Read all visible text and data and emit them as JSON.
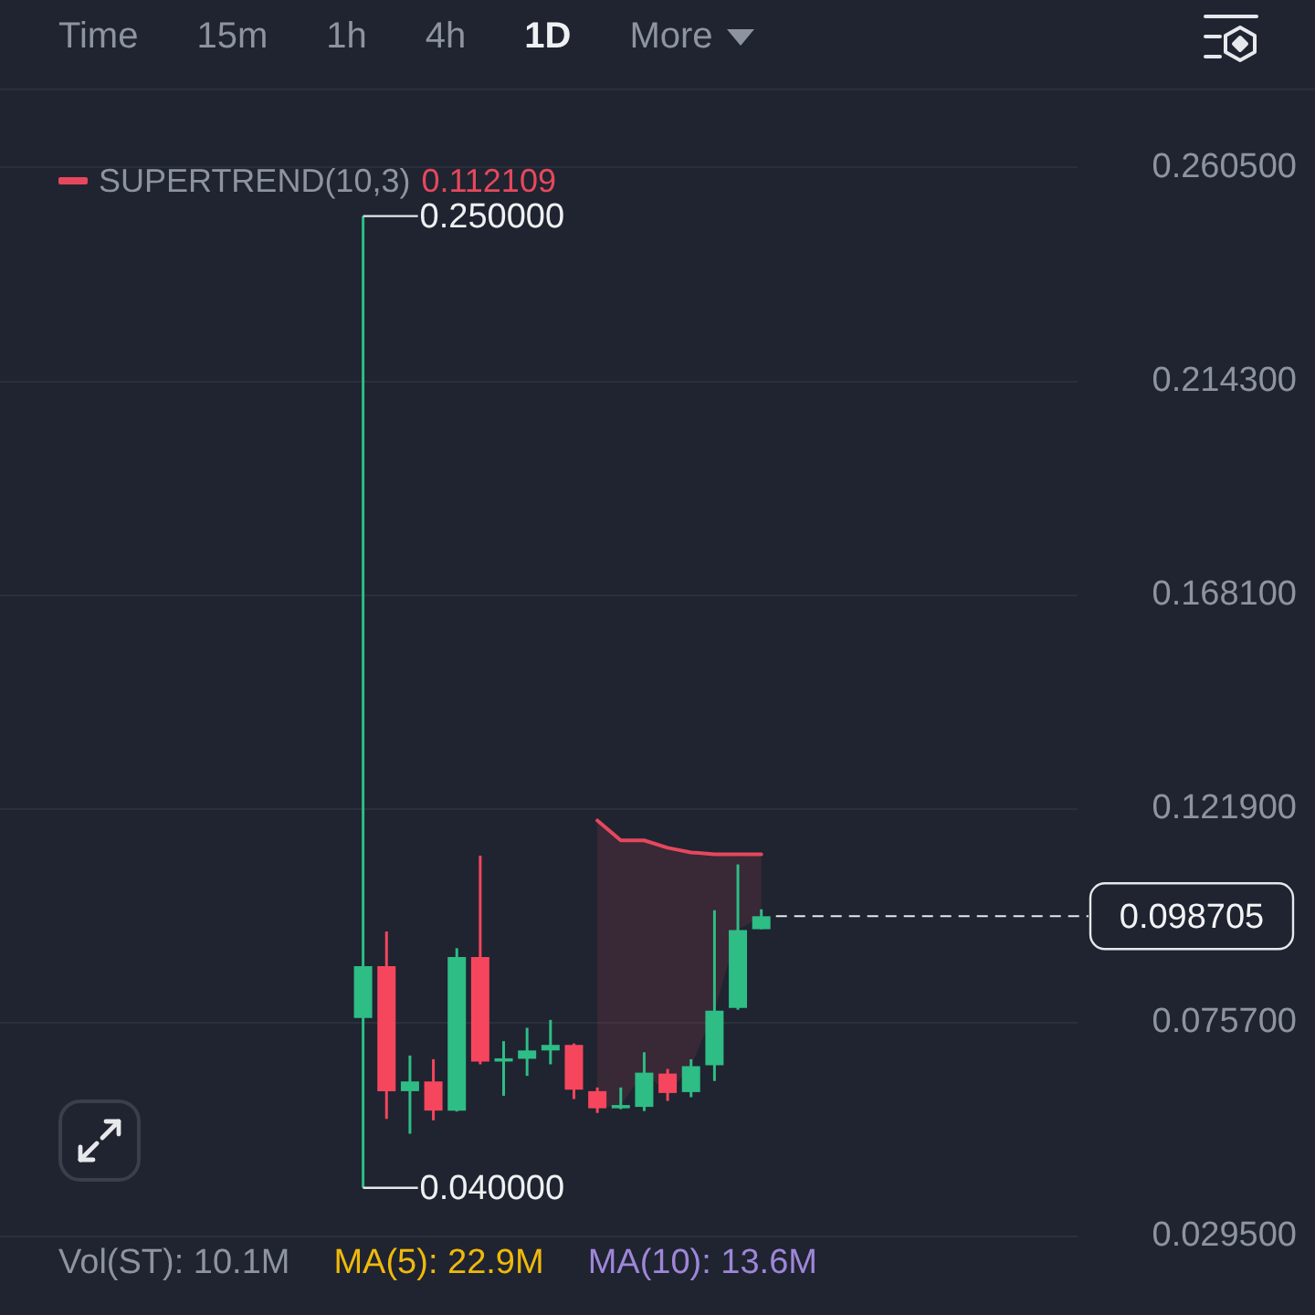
{
  "chart_data": {
    "type": "candlestick",
    "categories": [
      null,
      null,
      null,
      null,
      null,
      null,
      null,
      null,
      null,
      null,
      null,
      null,
      null,
      null,
      null,
      null,
      null,
      null,
      null,
      null,
      null,
      null,
      null,
      null,
      null,
      null,
      null,
      null,
      null,
      null,
      null,
      null,
      null,
      null,
      null,
      null,
      null,
      null,
      null,
      null,
      null,
      null,
      null,
      null,
      null,
      null
    ],
    "ohlc": [
      null,
      null,
      null,
      null,
      null,
      null,
      null,
      null,
      null,
      null,
      null,
      null,
      null,
      null,
      null,
      [
        0.0767,
        0.25,
        0.04,
        0.0879
      ],
      [
        0.0879,
        0.0954,
        0.0549,
        0.0609
      ],
      [
        0.0609,
        0.0686,
        0.0517,
        0.063
      ],
      [
        0.063,
        0.0678,
        0.0546,
        0.0567
      ],
      [
        0.0567,
        0.0918,
        0.0565,
        0.0899
      ],
      [
        0.0899,
        0.1118,
        0.0667,
        0.0673
      ],
      [
        0.0673,
        0.0717,
        0.0599,
        0.068
      ],
      [
        0.0679,
        0.0746,
        0.0642,
        0.0697
      ],
      [
        0.0697,
        0.0763,
        0.0667,
        0.0709
      ],
      [
        0.0709,
        0.0712,
        0.0592,
        0.0612
      ],
      [
        0.0609,
        0.0617,
        0.0562,
        0.0572
      ],
      [
        0.0572,
        0.0617,
        0.057,
        0.0579
      ],
      [
        0.0575,
        0.0693,
        0.0566,
        0.0649
      ],
      [
        0.0647,
        0.0657,
        0.0588,
        0.0605
      ],
      [
        0.0607,
        0.0678,
        0.0596,
        0.0663
      ],
      [
        0.0665,
        0.1,
        0.0631,
        0.0783
      ],
      [
        0.0789,
        0.1099,
        0.0785,
        0.0957
      ],
      [
        0.0959,
        0.1002,
        0.0959,
        0.098705
      ],
      null,
      null,
      null,
      null,
      null,
      null,
      null,
      null,
      null,
      null,
      null,
      null,
      null
    ],
    "colors": [
      null,
      null,
      null,
      null,
      null,
      null,
      null,
      null,
      null,
      null,
      null,
      null,
      null,
      null,
      null,
      "#2ebd85",
      "#f6465d",
      "#2ebd85",
      "#f6465d",
      "#2ebd85",
      "#f6465d",
      "#2ebd85",
      "#2ebd85",
      "#2ebd85",
      "#f6465d",
      "#f6465d",
      "#2ebd85",
      "#2ebd85",
      "#f6465d",
      "#2ebd85",
      "#2ebd85",
      "#2ebd85",
      "#2ebd85",
      null,
      null,
      null,
      null,
      null,
      null,
      null,
      null,
      null,
      null,
      null,
      null,
      null
    ],
    "series": [
      {
        "type": "line",
        "name": "SUPERTREND(10,3)",
        "color": "#e5485d",
        "values": [
          null,
          null,
          null,
          null,
          null,
          null,
          null,
          null,
          null,
          null,
          null,
          null,
          null,
          null,
          null,
          null,
          null,
          null,
          null,
          null,
          null,
          null,
          null,
          null,
          null,
          0.1194,
          0.1151,
          0.1151,
          0.1135,
          0.1125,
          0.1121,
          0.1121,
          0.1121,
          null,
          null,
          null,
          null,
          null,
          null,
          null,
          null,
          null,
          null,
          null,
          null,
          null
        ],
        "upper": [
          null,
          null,
          null,
          null,
          null,
          null,
          null,
          null,
          null,
          null,
          null,
          null,
          null,
          null,
          null,
          null,
          null,
          null,
          null,
          null,
          null,
          null,
          null,
          null,
          null,
          0.1194,
          0.1151,
          0.1151,
          0.1135,
          0.1125,
          0.1121,
          0.1121,
          0.1121,
          null,
          null,
          null,
          null,
          null,
          null,
          null,
          null,
          null,
          null,
          null,
          null,
          null
        ],
        "lower": [
          null,
          null,
          null,
          null,
          null,
          null,
          null,
          null,
          null,
          null,
          null,
          null,
          null,
          null,
          null,
          null,
          null,
          null,
          null,
          null,
          null,
          null,
          null,
          null,
          null,
          0.0572,
          0.0579,
          0.0649,
          0.0605,
          0.0663,
          0.0783,
          0.0957,
          0.098705,
          null,
          null,
          null,
          null,
          null,
          null,
          null,
          null,
          null,
          null,
          null,
          null,
          null
        ]
      }
    ],
    "ylim": [
      0.0295,
      0.2776
    ],
    "yticks": [
      {
        "value": 0.0295,
        "label": "0.029500"
      },
      {
        "value": 0.0757,
        "label": "0.075700"
      },
      {
        "value": 0.1219,
        "label": "0.121900"
      },
      {
        "value": 0.1681,
        "label": "0.168100"
      },
      {
        "value": 0.2143,
        "label": "0.214300"
      },
      {
        "value": 0.2605,
        "label": "0.260500"
      }
    ],
    "ref_lines": [
      {
        "axis": "y",
        "value": 0.098705,
        "label": "0.098705",
        "color": "#e6e8eb",
        "line_style": "dashed"
      }
    ],
    "annotations": [
      "Time",
      "15m",
      "1h",
      "4h",
      "1D",
      "More",
      "0.112109",
      "0.250000",
      "0.040000",
      "Vol(ST): 10.1M",
      "MA(5): 22.9M",
      "MA(10): 13.6M"
    ],
    "grid": "y",
    "tick_labels": "y",
    "legend": "top left",
    "marker": "none"
  }
}
